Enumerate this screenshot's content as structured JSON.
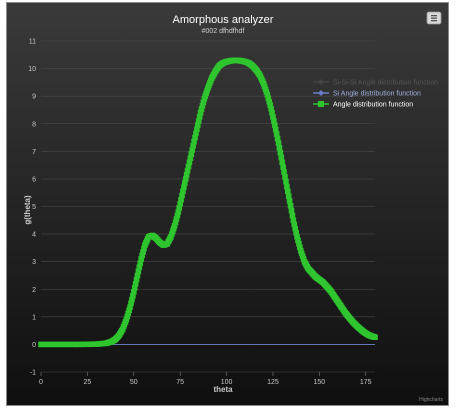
{
  "chart_data": {
    "type": "line",
    "title": "Amorphous analyzer",
    "subtitle": "#002 dfhdfhdf",
    "xlabel": "theta",
    "ylabel": "g(theta)",
    "xlim": [
      0,
      180
    ],
    "ylim": [
      -1,
      11
    ],
    "xticks": [
      0,
      25,
      50,
      75,
      100,
      125,
      150,
      175
    ],
    "yticks": [
      -1,
      0,
      1,
      2,
      3,
      4,
      5,
      6,
      7,
      8,
      9,
      10,
      11
    ],
    "grid": true,
    "legend_position": "top-right",
    "series": [
      {
        "name": "Si-Si-Si Angle distribution function",
        "color": "#444444",
        "marker": "diamond",
        "x": [
          0,
          180
        ],
        "y": [
          0,
          0
        ]
      },
      {
        "name": "Si Angle distribution function",
        "color": "#6a7ec8",
        "marker": "diamond",
        "x": [
          0,
          180
        ],
        "y": [
          0,
          0
        ]
      },
      {
        "name": "Angle distribution function",
        "color": "#2ec52e",
        "marker": "square",
        "x": [
          0,
          10,
          20,
          30,
          35,
          38,
          40,
          42,
          44,
          46,
          48,
          50,
          52,
          54,
          56,
          58,
          60,
          62,
          64,
          66,
          68,
          70,
          72,
          74,
          76,
          78,
          80,
          82,
          84,
          86,
          88,
          90,
          92,
          94,
          96,
          98,
          100,
          102,
          104,
          106,
          108,
          110,
          112,
          114,
          116,
          118,
          120,
          122,
          124,
          126,
          128,
          130,
          132,
          134,
          136,
          138,
          140,
          142,
          144,
          146,
          148,
          150,
          152,
          154,
          156,
          158,
          160,
          162,
          164,
          166,
          168,
          170,
          172,
          174,
          176,
          178,
          180
        ],
        "y": [
          0,
          0,
          0,
          0.01,
          0.04,
          0.1,
          0.18,
          0.32,
          0.55,
          0.9,
          1.35,
          1.9,
          2.5,
          3.1,
          3.6,
          3.9,
          3.95,
          3.85,
          3.7,
          3.6,
          3.65,
          3.9,
          4.3,
          4.8,
          5.4,
          6.0,
          6.6,
          7.2,
          7.8,
          8.4,
          8.9,
          9.3,
          9.65,
          9.9,
          10.1,
          10.2,
          10.25,
          10.28,
          10.3,
          10.3,
          10.28,
          10.25,
          10.2,
          10.1,
          9.95,
          9.75,
          9.45,
          9.05,
          8.55,
          7.95,
          7.3,
          6.6,
          5.9,
          5.2,
          4.5,
          3.9,
          3.4,
          3.0,
          2.75,
          2.6,
          2.45,
          2.35,
          2.25,
          2.1,
          1.95,
          1.75,
          1.55,
          1.35,
          1.15,
          0.98,
          0.82,
          0.68,
          0.56,
          0.45,
          0.36,
          0.3,
          0.26
        ]
      }
    ],
    "credits": "Highcharts"
  }
}
